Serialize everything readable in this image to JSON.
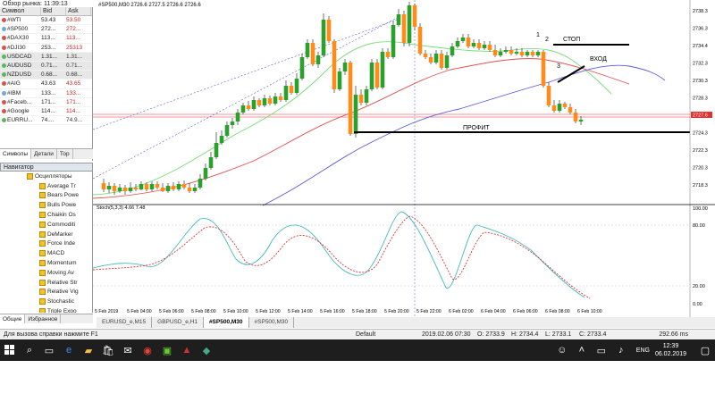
{
  "market_watch": {
    "title": "Обзор рынка: 11:39:13",
    "columns": [
      "Символ",
      "Bid",
      "Ask"
    ],
    "rows": [
      {
        "symbol": "#WTI",
        "bid": "53.43",
        "ask": "53.50",
        "color": "#d9534f"
      },
      {
        "symbol": "#SP500",
        "bid": "272...",
        "ask": "272...",
        "color": "#6fa8dc"
      },
      {
        "symbol": "#DAX30",
        "bid": "113...",
        "ask": "113...",
        "color": "#d9534f"
      },
      {
        "symbol": "#DJI30",
        "bid": "253...",
        "ask": "25313",
        "color": "#d9534f"
      },
      {
        "symbol": "USDCAD",
        "bid": "1.31...",
        "ask": "1.31...",
        "color": "#5cb85c"
      },
      {
        "symbol": "AUDUSD",
        "bid": "0.71...",
        "ask": "0.71...",
        "color": "#5cb85c"
      },
      {
        "symbol": "NZDUSD",
        "bid": "0.68...",
        "ask": "0.68...",
        "color": "#5cb85c"
      },
      {
        "symbol": "#AIG",
        "bid": "43.63",
        "ask": "43.65",
        "color": "#d9534f"
      },
      {
        "symbol": "#IBM",
        "bid": "133...",
        "ask": "133...",
        "color": "#6fa8dc"
      },
      {
        "symbol": "#Faceb...",
        "bid": "171...",
        "ask": "171...",
        "color": "#d9534f"
      },
      {
        "symbol": "#Google",
        "bid": "114...",
        "ask": "114...",
        "color": "#d9534f"
      },
      {
        "symbol": "EURRU...",
        "bid": "74....",
        "ask": "74.9...",
        "color": "#5cb85c"
      }
    ],
    "tabs": [
      "Символы",
      "Детали",
      "Тор"
    ]
  },
  "navigator": {
    "title": "Навигатор",
    "root": "Осцилляторы",
    "items": [
      "Average Tr",
      "Bears Powe",
      "Bulls Powe",
      "Chaikin Os",
      "Commoditi",
      "DeMarker",
      "Force Inde",
      "MACD",
      "Momentum",
      "Moving Av",
      "Relative Str",
      "Relative Vig",
      "Stochastic",
      "Triple Expo",
      "Williams' P"
    ],
    "tabs": [
      "Общие",
      "Избранное"
    ]
  },
  "chart": {
    "header": "#SP500,M30  2726.6 2727.5 2726.6 2726.6",
    "stoch_header": "Stoch(5,3,3) 4.66 7.48",
    "price_labels": [
      "2738.3",
      "2736.3",
      "2734.4",
      "2732.3",
      "2730.3",
      "2728.3",
      "2726.3",
      "2724.3",
      "2722.3",
      "2720.3",
      "2718.3"
    ],
    "current_price": "2727.6",
    "stoch_labels": [
      "100.00",
      "80.00",
      "20.00",
      "0.00"
    ],
    "time_labels": [
      "5 Feb 2019",
      "5 Feb 04:00",
      "5 Feb 06:00",
      "5 Feb 08:00",
      "5 Feb 10:00",
      "5 Feb 12:00",
      "5 Feb 14:00",
      "5 Feb 16:00",
      "5 Feb 18:00",
      "5 Feb 20:00",
      "5 Feb 22:00",
      "6 Feb 02:00",
      "6 Feb 04:00",
      "6 Feb 06:00",
      "6 Feb 08:00",
      "6 Feb 10:00"
    ],
    "annotations": {
      "stop": "СТОП",
      "entry": "ВХОД",
      "profit": "ПРОФИТ",
      "n1": "1",
      "n2": "2",
      "n3": "3"
    },
    "colors": {
      "bull": "#2ca02c",
      "bear": "#ff8c1a",
      "ma_fast": "#77dd77",
      "ma_mid": "#e05050",
      "ma_slow": "#5a5add",
      "stoch_main": "#44b8c0",
      "stoch_signal": "#e03030"
    }
  },
  "chart_tabs": [
    "EURUSD_e,M15",
    "GBPUSD_e,H1",
    "#SP500,M30",
    "#SP500,M30"
  ],
  "active_tab": 2,
  "status": {
    "help": "Для вызова справки нажмите F1",
    "profile": "Default",
    "datetime": "2019.02.06 07:30",
    "open": "O: 2733.9",
    "high": "H: 2734.4",
    "low": "L: 2733.1",
    "close": "C: 2733.4",
    "traffic": "292.66 ms"
  },
  "taskbar": {
    "time": "12:39",
    "date": "06.02.2019",
    "lang": "ENG"
  }
}
